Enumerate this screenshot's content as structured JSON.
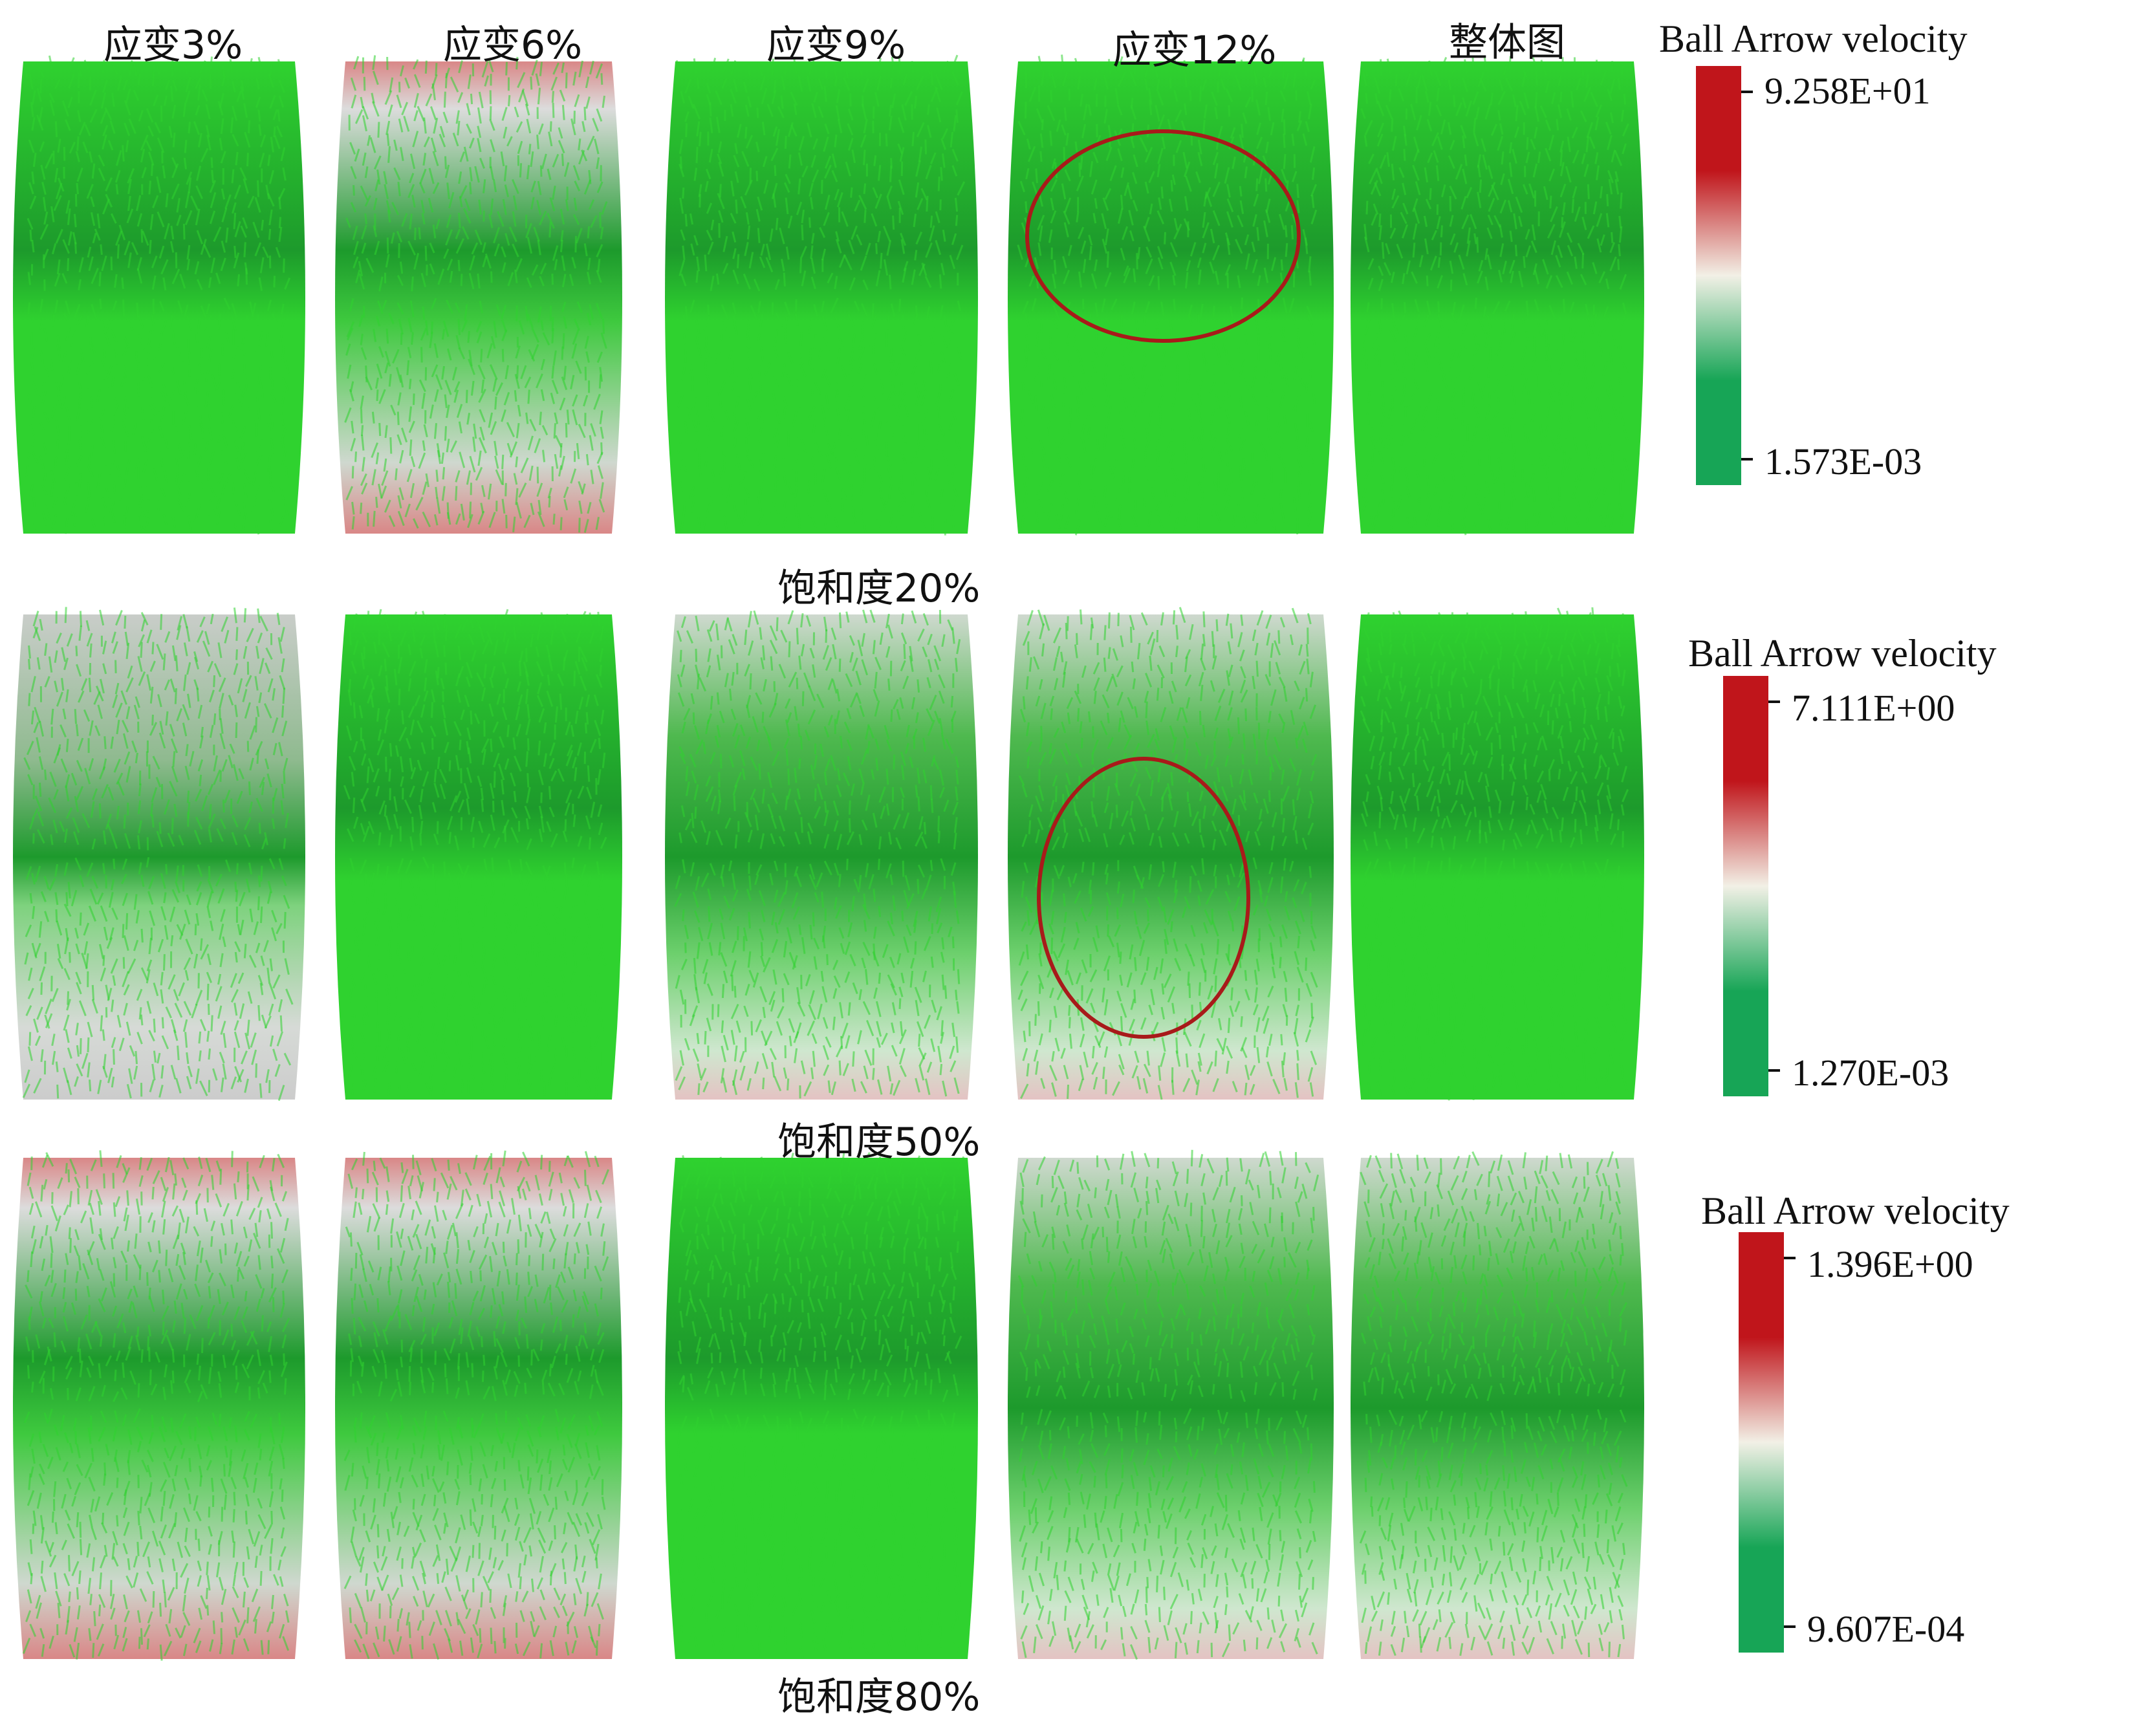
{
  "columns": [
    "应变3%",
    "应变6%",
    "应变9%",
    "应变12%",
    "整体图"
  ],
  "rows": [
    {
      "label": "饱和度20%",
      "legend": {
        "title": "Ball Arrow velocity",
        "max": "9.258E+01",
        "min": "1.573E-03"
      },
      "panels": [
        {
          "shade": "uniform-green"
        },
        {
          "shade": "red-top-bottom"
        },
        {
          "shade": "uniform-green"
        },
        {
          "shade": "uniform-green",
          "ring": true
        },
        {
          "shade": "uniform-green"
        }
      ]
    },
    {
      "label": "饱和度50%",
      "legend": {
        "title": "Ball Arrow velocity",
        "max": "7.111E+00",
        "min": "1.270E-03"
      },
      "panels": [
        {
          "shade": "gray-top-bottom"
        },
        {
          "shade": "uniform-green"
        },
        {
          "shade": "pale-top-bottom"
        },
        {
          "shade": "pale-top-bottom",
          "ring": true
        },
        {
          "shade": "uniform-green"
        }
      ]
    },
    {
      "label": "饱和度80%",
      "legend": {
        "title": "Ball Arrow velocity",
        "max": "1.396E+00",
        "min": "9.607E-04"
      },
      "panels": [
        {
          "shade": "red-top-bottom"
        },
        {
          "shade": "red-top-bottom"
        },
        {
          "shade": "uniform-green"
        },
        {
          "shade": "pale-top-bottom"
        },
        {
          "shade": "pale-top-bottom"
        }
      ]
    }
  ],
  "colors": {
    "arrow_green": "#2fd22f",
    "arrow_dark_green": "#1d9a2c",
    "high_red": "#c0151b",
    "legend_mid": "#f2f0e6",
    "legend_low": "#17a556",
    "ring": "#a81a1a"
  }
}
